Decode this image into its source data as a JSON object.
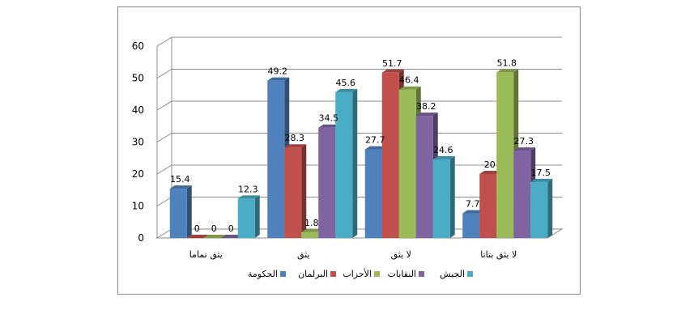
{
  "chart_data": {
    "type": "bar",
    "title": "",
    "xlabel": "",
    "ylabel": "",
    "ylim": [
      0,
      60
    ],
    "yticks": [
      0,
      10,
      20,
      30,
      40,
      50,
      60
    ],
    "grid": true,
    "legend_position": "bottom",
    "three_d": true,
    "categories": [
      "يثق تماما",
      "يثق",
      "لا يثق",
      "لا يثق بتاتا"
    ],
    "series": [
      {
        "name": "الحكومة",
        "color": "#4f81bd",
        "values": [
          15.4,
          49.2,
          27.7,
          7.7
        ]
      },
      {
        "name": "البرلمان",
        "color": "#c0504d",
        "values": [
          0,
          28.3,
          51.7,
          20
        ]
      },
      {
        "name": "الأحزاب",
        "color": "#9bbb59",
        "values": [
          0,
          1.8,
          46.4,
          51.8
        ]
      },
      {
        "name": "النقابات",
        "color": "#8064a2",
        "values": [
          0,
          34.5,
          38.2,
          27.3
        ]
      },
      {
        "name": "الجيش",
        "color": "#4bacc6",
        "values": [
          12.3,
          45.6,
          24.6,
          17.5
        ]
      }
    ]
  }
}
